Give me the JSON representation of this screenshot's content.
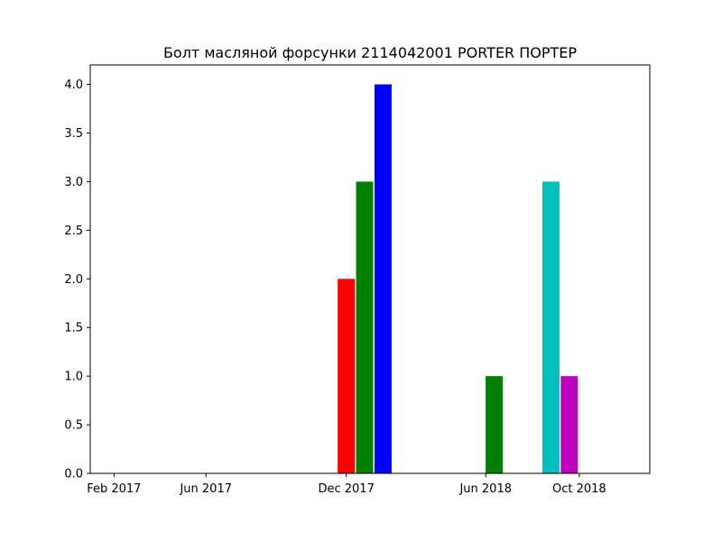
{
  "chart_data": {
    "type": "bar",
    "title": "Болт масляной форсунки 2114042001 PORTER ПОРТЕР",
    "xlabel": "",
    "ylabel": "",
    "x_axis": "date",
    "xlim": [
      "2017-01-01",
      "2019-01-01"
    ],
    "ylim": [
      0,
      4.2
    ],
    "grid": false,
    "x_ticks": [
      {
        "date": "2017-02-01",
        "label": "Feb 2017"
      },
      {
        "date": "2017-06-01",
        "label": "Jun 2017"
      },
      {
        "date": "2017-12-01",
        "label": "Dec 2017"
      },
      {
        "date": "2018-06-01",
        "label": "Jun 2018"
      },
      {
        "date": "2018-10-01",
        "label": "Oct 2018"
      }
    ],
    "y_ticks": [
      "0.0",
      "0.5",
      "1.0",
      "1.5",
      "2.0",
      "2.5",
      "3.0",
      "3.5",
      "4.0"
    ],
    "bars": [
      {
        "date": "2017-12-01",
        "value": 2,
        "color": "#ff0000"
      },
      {
        "date": "2017-12-25",
        "value": 3,
        "color": "#008000"
      },
      {
        "date": "2018-01-18",
        "value": 4,
        "color": "#0000ff"
      },
      {
        "date": "2018-06-12",
        "value": 1,
        "color": "#008000"
      },
      {
        "date": "2018-08-25",
        "value": 3,
        "color": "#00bfbf"
      },
      {
        "date": "2018-09-18",
        "value": 1,
        "color": "#bf00bf"
      }
    ]
  }
}
